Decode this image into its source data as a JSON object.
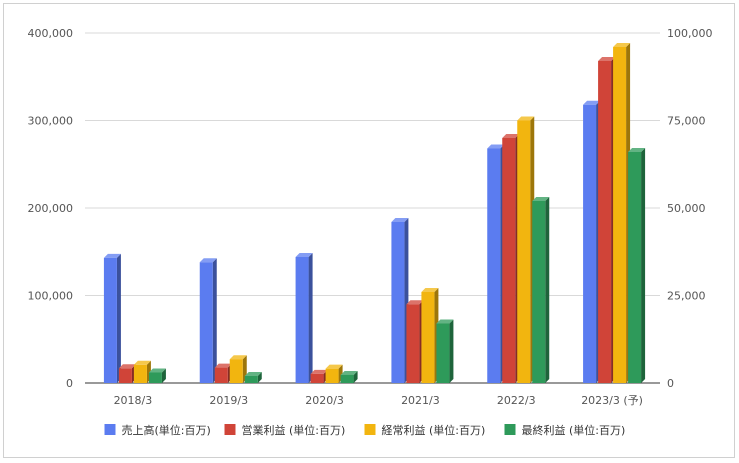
{
  "chart_data": {
    "type": "bar",
    "style": "3d",
    "categories": [
      "2018/3",
      "2019/3",
      "2020/3",
      "2021/3",
      "2022/3",
      "2023/3 (予)"
    ],
    "left_axis": {
      "ylim": [
        0,
        400000
      ],
      "ticks": [
        0,
        100000,
        200000,
        300000,
        400000
      ],
      "tick_labels": [
        "0",
        "100,000",
        "200,000",
        "300,000",
        "400,000"
      ]
    },
    "right_axis": {
      "ylim": [
        0,
        100000
      ],
      "ticks": [
        0,
        25000,
        50000,
        75000,
        100000
      ],
      "tick_labels": [
        "0",
        "25,000",
        "50,000",
        "75,000",
        "100,000"
      ]
    },
    "series": [
      {
        "name": "売上高(単位:百万)",
        "axis": "left",
        "color": "#5b7cf0",
        "values": [
          143000,
          138000,
          144000,
          184000,
          268000,
          318000
        ]
      },
      {
        "name": "営業利益 (単位:百万)",
        "axis": "right",
        "color": "#d04438",
        "values": [
          4200,
          4400,
          2600,
          22500,
          70000,
          92000
        ]
      },
      {
        "name": "経常利益 (単位:百万)",
        "axis": "right",
        "color": "#f2b50f",
        "values": [
          5200,
          6800,
          4100,
          26000,
          75000,
          96000
        ]
      },
      {
        "name": "最終利益 (単位:百万)",
        "axis": "right",
        "color": "#2e9a5a",
        "values": [
          3000,
          2000,
          2300,
          17000,
          52000,
          66000
        ]
      }
    ],
    "grid": true,
    "legend": "bottom"
  }
}
